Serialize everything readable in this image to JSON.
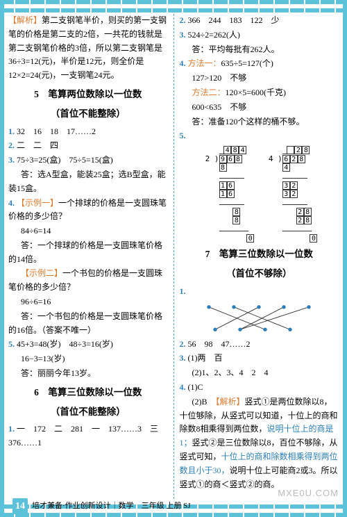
{
  "colors": {
    "border": "#5bc2d9",
    "blue_text": "#2a7fb8",
    "orange_text": "#e07b2e",
    "black": "#222222"
  },
  "typography": {
    "base_font": "SimSun",
    "base_size_pt": 12,
    "heading_size_pt": 13.5
  },
  "left": {
    "p1a": "【解析】",
    "p1b": "第二支钢笔半价，则买的第一支钢笔的价格是第二支的2倍，一共花的钱就是第二支钢笔价格的3倍，所以第二支钢笔是36÷3=12(元)，半价是12元，则全价是12×2=24(元)，一支钢笔24元。",
    "h5a": "5　笔算两位数除以一位数",
    "h5b": "（首位不能整除）",
    "q1": "32　16　18　17……2",
    "q2": "二　二　四",
    "q3a": "75÷3=25(盒)　75÷5=15(盒)",
    "q3b": "答：选A型盒，能装25盒；选B型盒，能装15盒。",
    "q4label": "【示例一】",
    "q4a": "一个排球的价格是一支圆珠笔价格的多少倍？",
    "q4b": "84÷6=14",
    "q4c": "答：一个排球的价格是一支圆珠笔价格的14倍。",
    "q4label2": "【示例二】",
    "q4d": "一个书包的价格是一支圆珠笔价格的多少倍？",
    "q4e": "96÷6=16",
    "q4f": "答：一个书包的价格是一支圆珠笔价格的16倍。（答案不唯一）",
    "q5a": "45+3=48(岁)　48÷3=16(岁)",
    "q5b": "16−3=13(岁)",
    "q5c": "答：丽丽今年13岁。",
    "h6a": "6　笔算三位数除以一位数",
    "h6b": "（首位不能整除）",
    "q6_1": "一　172　二　281　一　137……3　三　376……1"
  },
  "right": {
    "r2": "366　244　183　122　少",
    "r3a": "524÷2=262(人)",
    "r3b": "答：平均每批有262人。",
    "r4a": "方法一：",
    "r4a2": "635÷5=127(个)",
    "r4b": "127>120　不够",
    "r4c": "方法二：",
    "r4c2": "120×5=600(千克)",
    "r4d": "600<635　不够",
    "r4e": "答：准备120个这样的桶不够。",
    "r5": "",
    "division": {
      "left": {
        "divisor": "2",
        "dividend": "968",
        "quotient_boxes": [
          "4",
          "8",
          "4"
        ],
        "steps": [
          "8",
          "16",
          "16",
          "8",
          "8",
          "0"
        ]
      },
      "right": {
        "divisor": "4",
        "dividend": "628",
        "quotient_boxes": [
          "",
          "2",
          "8"
        ],
        "steps": [
          "4",
          "32",
          "32",
          "28",
          "28",
          "0"
        ]
      }
    },
    "h7a": "7　笔算三位数除以一位数",
    "h7b": "（首位不够除）",
    "cross": {
      "top_x": [
        20,
        60,
        100,
        140,
        180
      ],
      "bot_x": [
        30,
        70,
        110,
        150
      ],
      "edges": [
        [
          0,
          2
        ],
        [
          1,
          3
        ],
        [
          2,
          0
        ],
        [
          3,
          1
        ],
        [
          4,
          1
        ]
      ],
      "dot_color": "#2a7fb8",
      "line_color": "#333333"
    },
    "q2b": "56　98　47……2",
    "q3_1": "(1)两　百",
    "q3_2": "(2)1、2、3、4　2　4",
    "q4_1": "(1)C",
    "q4_2a": "(2)B　",
    "q4_2lab": "【解析】",
    "q4_2b": "竖式①是两位数除以8，十位够除，从竖式可以知道，十位上的商和除数8相乘得到两位数，",
    "q4_2c": "说明十位上的商是1；",
    "q4_2d": "竖式②是三位数除以8，百位不够除，从竖式可知，",
    "q4_2e": "十位上的商和除数相乘得到两位数且小于30，",
    "q4_2f": "说明十位上可能商2或3。所以竖式①的商＜竖式②的商。"
  },
  "footer": {
    "page_number": "14",
    "text": "培才兼备·作业创新设计｜数学　三年级 上册 SJ"
  },
  "watermark": "MXE0U.COM"
}
